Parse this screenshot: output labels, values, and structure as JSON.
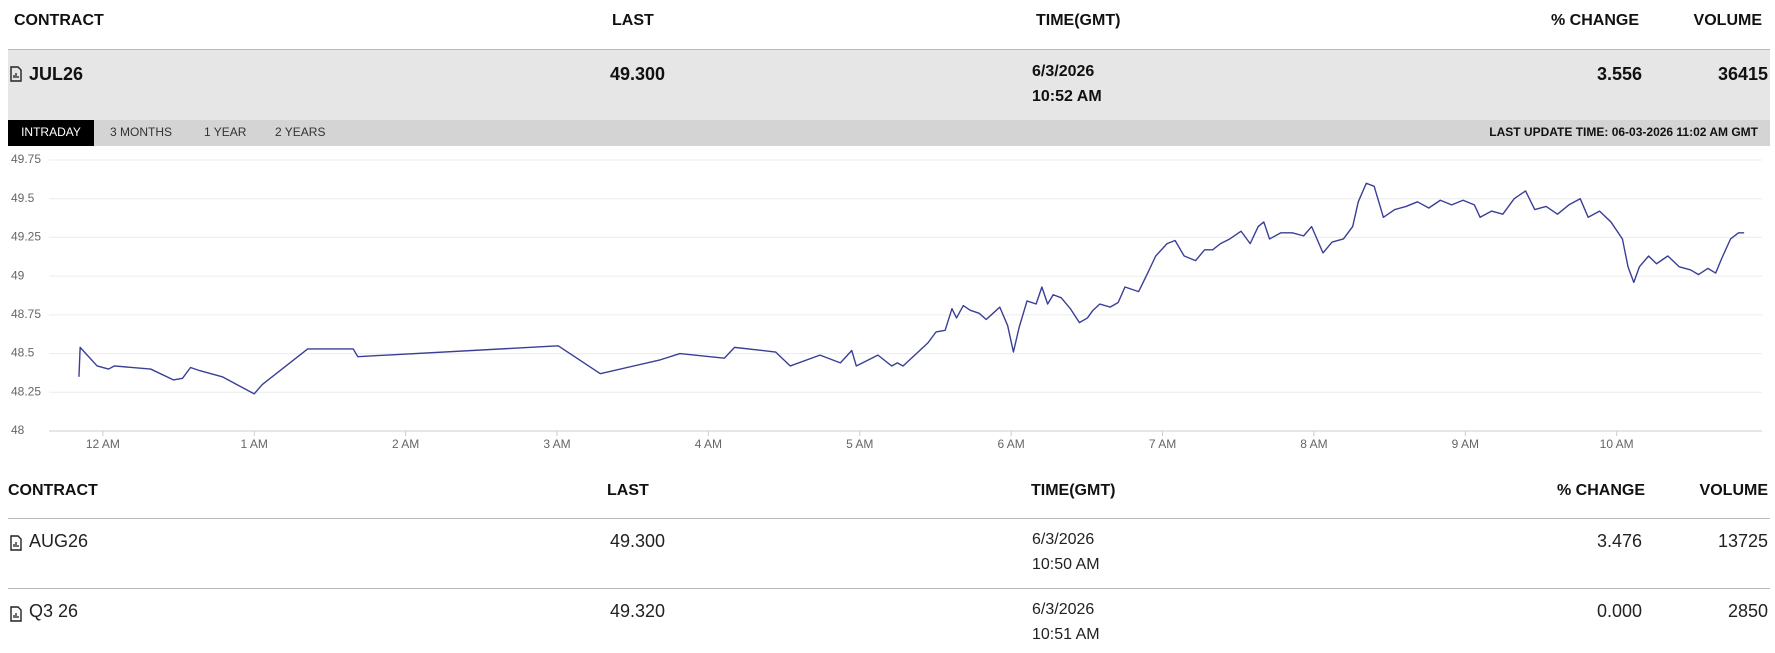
{
  "header": [
    "CONTRACT",
    "LAST",
    "TIME(GMT)",
    "% CHANGE",
    "VOLUME"
  ],
  "main_row": {
    "contract": "JUL26",
    "last": "49.300",
    "date": "6/3/2026",
    "time": "10:52 AM",
    "change": "3.556",
    "volume": "36415"
  },
  "tabs": [
    "INTRADAY",
    "3 MONTHS",
    "1 YEAR",
    "2 YEARS"
  ],
  "last_update": "LAST UPDATE TIME: 06-03-2026 11:02 AM GMT",
  "chart_data": {
    "type": "line",
    "color": "#3a3f96",
    "grid": true,
    "xlim": [
      -0.62,
      10.96
    ],
    "xticks": [
      {
        "value": 0,
        "label": "12 AM"
      },
      {
        "value": 1,
        "label": "1 AM"
      },
      {
        "value": 2,
        "label": "2 AM"
      },
      {
        "value": 3,
        "label": "3 AM"
      },
      {
        "value": 4,
        "label": "4 AM"
      },
      {
        "value": 5,
        "label": "5 AM"
      },
      {
        "value": 6,
        "label": "6 AM"
      },
      {
        "value": 7,
        "label": "7 AM"
      },
      {
        "value": 8,
        "label": "8 AM"
      },
      {
        "value": 9,
        "label": "9 AM"
      },
      {
        "value": 10,
        "label": "10 AM"
      }
    ],
    "ylim": [
      48,
      49.75
    ],
    "yticks": [
      48,
      48.25,
      48.5,
      48.75,
      49,
      49.25,
      49.5,
      49.75
    ],
    "x": [
      -0.158,
      -0.15,
      -0.038,
      0.038,
      0.075,
      0.316,
      0.466,
      0.526,
      0.579,
      0.639,
      0.789,
      1.0,
      1.053,
      1.353,
      1.654,
      1.684,
      3.008,
      3.286,
      3.684,
      3.812,
      4.105,
      4.173,
      4.444,
      4.541,
      4.737,
      4.872,
      4.947,
      4.977,
      5.12,
      5.211,
      5.248,
      5.286,
      5.451,
      5.504,
      5.564,
      5.609,
      5.639,
      5.684,
      5.729,
      5.789,
      5.835,
      5.88,
      5.925,
      5.977,
      6.015,
      6.053,
      6.105,
      6.165,
      6.203,
      6.241,
      6.278,
      6.331,
      6.391,
      6.451,
      6.504,
      6.541,
      6.586,
      6.654,
      6.707,
      6.752,
      6.842,
      6.902,
      6.955,
      7.03,
      7.083,
      7.143,
      7.218,
      7.278,
      7.331,
      7.383,
      7.444,
      7.519,
      7.579,
      7.632,
      7.669,
      7.707,
      7.782,
      7.857,
      7.932,
      7.985,
      8.06,
      8.12,
      8.195,
      8.256,
      8.293,
      8.346,
      8.398,
      8.459,
      8.534,
      8.609,
      8.684,
      8.759,
      8.835,
      8.91,
      8.985,
      9.06,
      9.098,
      9.173,
      9.248,
      9.323,
      9.398,
      9.459,
      9.534,
      9.609,
      9.684,
      9.759,
      9.812,
      9.887,
      9.962,
      10.038,
      10.075,
      10.113,
      10.15,
      10.211,
      10.263,
      10.338,
      10.414,
      10.489,
      10.541,
      10.602,
      10.654,
      10.692,
      10.752,
      10.805,
      10.842
    ],
    "series": [
      {
        "values": [
          48.35,
          48.54,
          48.42,
          48.4,
          48.42,
          48.4,
          48.33,
          48.34,
          48.41,
          48.39,
          48.35,
          48.24,
          48.3,
          48.53,
          48.53,
          48.48,
          48.55,
          48.37,
          48.46,
          48.5,
          48.47,
          48.54,
          48.51,
          48.42,
          48.49,
          48.44,
          48.52,
          48.42,
          48.49,
          48.42,
          48.44,
          48.42,
          48.57,
          48.64,
          48.65,
          48.79,
          48.73,
          48.81,
          48.78,
          48.76,
          48.72,
          48.76,
          48.8,
          48.68,
          48.51,
          48.67,
          48.84,
          48.82,
          48.93,
          48.82,
          48.88,
          48.86,
          48.79,
          48.7,
          48.73,
          48.78,
          48.82,
          48.8,
          48.83,
          48.93,
          48.9,
          49.02,
          49.13,
          49.21,
          49.23,
          49.13,
          49.1,
          49.17,
          49.17,
          49.21,
          49.24,
          49.29,
          49.21,
          49.32,
          49.35,
          49.24,
          49.28,
          49.28,
          49.26,
          49.32,
          49.15,
          49.22,
          49.24,
          49.32,
          49.48,
          49.6,
          49.58,
          49.38,
          49.43,
          49.45,
          49.48,
          49.44,
          49.49,
          49.46,
          49.49,
          49.46,
          49.38,
          49.42,
          49.4,
          49.5,
          49.55,
          49.43,
          49.45,
          49.4,
          49.46,
          49.5,
          49.38,
          49.42,
          49.35,
          49.24,
          49.06,
          48.96,
          49.06,
          49.13,
          49.08,
          49.13,
          49.06,
          49.04,
          49.01,
          49.05,
          49.02,
          49.11,
          49.24,
          49.28,
          49.28
        ]
      }
    ]
  },
  "table": {
    "header": [
      "CONTRACT",
      "LAST",
      "TIME(GMT)",
      "% CHANGE",
      "VOLUME"
    ],
    "rows": [
      {
        "contract": "AUG26",
        "last": "49.300",
        "date": "6/3/2026",
        "time": "10:50 AM",
        "change": "3.476",
        "volume": "13725"
      },
      {
        "contract": "Q3 26",
        "last": "49.320",
        "date": "6/3/2026",
        "time": "10:51 AM",
        "change": "0.000",
        "volume": "2850"
      }
    ]
  }
}
